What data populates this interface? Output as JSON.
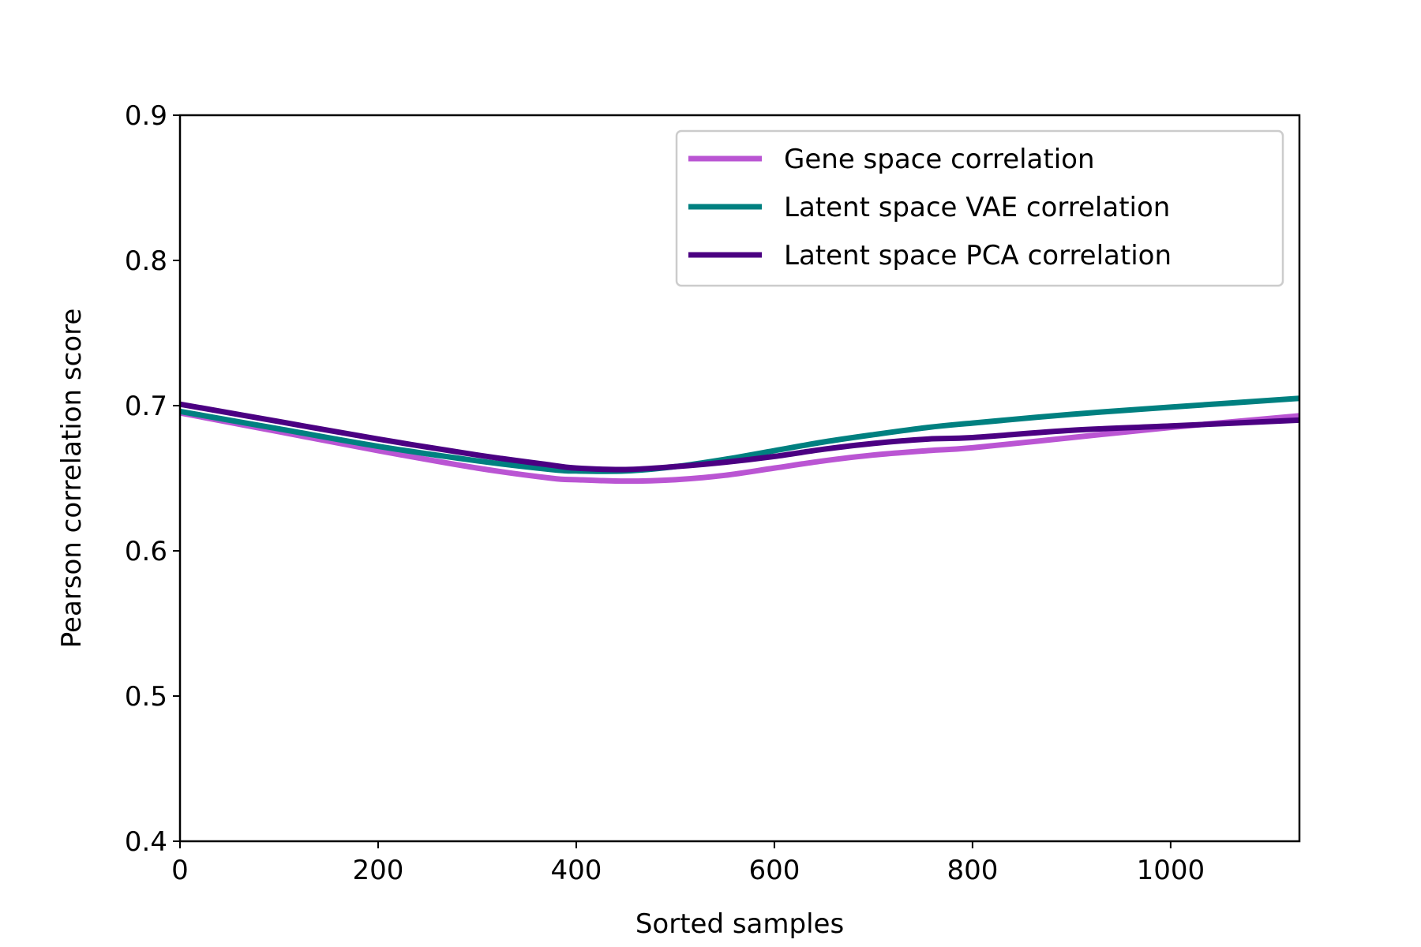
{
  "chart_data": {
    "type": "line",
    "title": "",
    "xlabel": "Sorted samples",
    "ylabel": "Pearson correlation score",
    "xlim": [
      0,
      1130
    ],
    "ylim": [
      0.4,
      0.9
    ],
    "xticks": [
      0,
      200,
      400,
      600,
      800,
      1000
    ],
    "xtick_labels": [
      "0",
      "200",
      "400",
      "600",
      "800",
      "1000"
    ],
    "yticks": [
      0.4,
      0.5,
      0.6,
      0.7,
      0.8,
      0.9
    ],
    "ytick_labels": [
      "0.4",
      "0.5",
      "0.6",
      "0.7",
      "0.8",
      "0.9"
    ],
    "grid": false,
    "legend_position": "top-right",
    "series": [
      {
        "name": "Gene space correlation",
        "color": "#ba55d3",
        "x": [
          0,
          100,
          200,
          300,
          375,
          400,
          450,
          500,
          550,
          600,
          650,
          700,
          755,
          800,
          900,
          1000,
          1130
        ],
        "y": [
          0.695,
          0.682,
          0.669,
          0.657,
          0.65,
          0.649,
          0.648,
          0.649,
          0.652,
          0.657,
          0.662,
          0.666,
          0.669,
          0.671,
          0.678,
          0.685,
          0.693
        ]
      },
      {
        "name": "Latent space VAE correlation",
        "color": "#008080",
        "x": [
          0,
          100,
          200,
          300,
          375,
          400,
          450,
          500,
          550,
          600,
          650,
          700,
          755,
          800,
          900,
          1000,
          1130
        ],
        "y": [
          0.696,
          0.684,
          0.672,
          0.662,
          0.656,
          0.655,
          0.655,
          0.658,
          0.663,
          0.669,
          0.675,
          0.68,
          0.685,
          0.688,
          0.694,
          0.699,
          0.705
        ]
      },
      {
        "name": "Latent space PCA correlation",
        "color": "#4b0082",
        "x": [
          0,
          100,
          200,
          300,
          375,
          400,
          450,
          500,
          550,
          600,
          650,
          700,
          755,
          800,
          900,
          1000,
          1130
        ],
        "y": [
          0.701,
          0.689,
          0.677,
          0.666,
          0.659,
          0.657,
          0.656,
          0.658,
          0.661,
          0.665,
          0.67,
          0.674,
          0.677,
          0.678,
          0.683,
          0.686,
          0.69
        ]
      }
    ]
  }
}
